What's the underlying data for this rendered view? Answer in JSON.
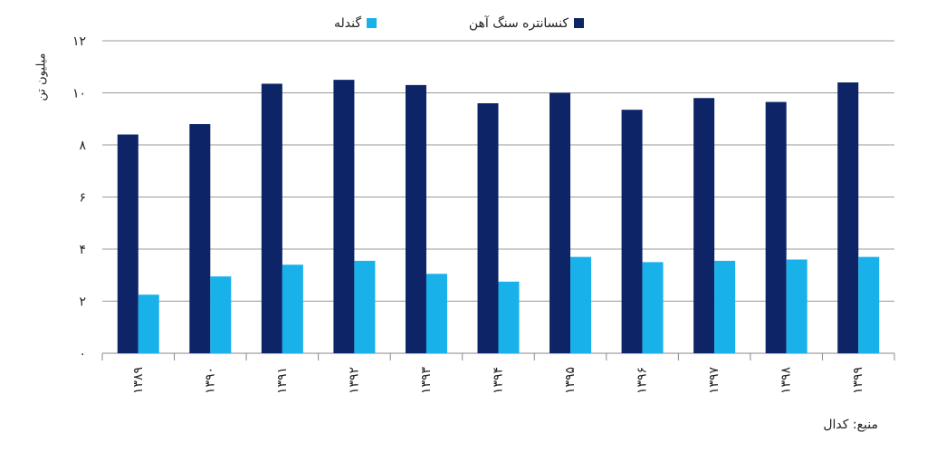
{
  "chart_data": {
    "type": "bar",
    "title": "",
    "xlabel": "",
    "ylabel": "میلیون تن",
    "ylim": [
      0,
      12
    ],
    "yticks": [
      "۰",
      "۲",
      "۴",
      "۶",
      "۸",
      "۱۰",
      "۱۲"
    ],
    "grid": true,
    "legend_position": "top-center",
    "categories": [
      "۱۳۸۹",
      "۱۳۹۰",
      "۱۳۹۱",
      "۱۳۹۲",
      "۱۳۹۳",
      "۱۳۹۴",
      "۱۳۹۵",
      "۱۳۹۶",
      "۱۳۹۷",
      "۱۳۹۸",
      "۱۳۹۹"
    ],
    "series": [
      {
        "name": "کنسانتره سنگ آهن",
        "color": "#0d2466",
        "values": [
          8.4,
          8.8,
          10.35,
          10.5,
          10.3,
          9.6,
          10.0,
          9.35,
          9.8,
          9.65,
          10.4
        ]
      },
      {
        "name": "گندله",
        "color": "#19b1ea",
        "values": [
          2.25,
          2.95,
          3.4,
          3.55,
          3.05,
          2.75,
          3.7,
          3.5,
          3.55,
          3.6,
          3.7
        ]
      }
    ],
    "source": "منبع: کدال"
  }
}
